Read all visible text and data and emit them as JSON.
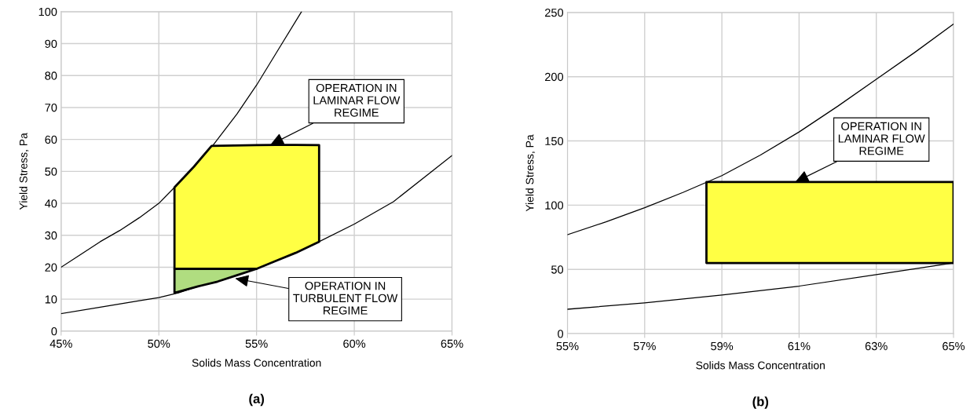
{
  "chart_data": [
    {
      "type": "line",
      "title": "(a)",
      "xlabel": "Solids Mass Concentration",
      "ylabel": "Yield Stress, Pa",
      "xlim": [
        45,
        65
      ],
      "xticks": [
        {
          "value": 45,
          "label": "45%"
        },
        {
          "value": 50,
          "label": "50%"
        },
        {
          "value": 55,
          "label": "55%"
        },
        {
          "value": 60,
          "label": "60%"
        },
        {
          "value": 65,
          "label": "65%"
        }
      ],
      "ylim": [
        0,
        100
      ],
      "yticks": [
        0,
        10,
        20,
        30,
        40,
        50,
        60,
        70,
        80,
        90,
        100
      ],
      "grid": true,
      "series": [
        {
          "color": "#000000",
          "x": [
            45,
            46,
            47,
            48,
            49,
            50,
            50.8,
            52,
            53,
            54,
            55,
            56,
            57.3
          ],
          "values": [
            20,
            24,
            28,
            31.5,
            35.5,
            40,
            45,
            52,
            60,
            68,
            77,
            87,
            100
          ]
        },
        {
          "color": "#000000",
          "x": [
            45,
            47,
            49,
            50,
            51,
            52,
            53,
            54,
            55,
            56,
            57,
            58.2,
            60,
            62,
            65
          ],
          "values": [
            5.5,
            7.5,
            9.5,
            10.5,
            12,
            14,
            15.5,
            17.5,
            19.5,
            22,
            24.5,
            28,
            33.5,
            40.5,
            55
          ]
        },
        {
          "type": "area",
          "color": "#ffff44",
          "x": [
            50.8,
            51.8,
            52.7,
            55,
            56,
            57,
            58.2,
            58.2,
            57,
            56,
            55,
            50.8
          ],
          "values": [
            45,
            51.5,
            58,
            58.2,
            58.3,
            58.3,
            58.2,
            28,
            24.5,
            22,
            19.5,
            19.5
          ]
        },
        {
          "type": "area",
          "color": "#b0dd80",
          "x": [
            50.8,
            55,
            54,
            53,
            52,
            50.8
          ],
          "values": [
            19.5,
            19.5,
            17.5,
            15.5,
            14,
            12
          ]
        }
      ],
      "annotations": [
        {
          "text": "OPERATION IN\nLAMINAR FLOW\nREGIME",
          "x": 55.7,
          "y": 58.3
        },
        {
          "text": "OPERATION IN\nTURBULENT FLOW\nREGIME",
          "x": 53.9,
          "y": 16.5
        }
      ]
    },
    {
      "type": "line",
      "title": "(b)",
      "xlabel": "Solids Mass Concentration",
      "ylabel": "Yield Stress, Pa",
      "xlim": [
        55,
        65
      ],
      "xticks": [
        {
          "value": 55,
          "label": "55%"
        },
        {
          "value": 57,
          "label": "57%"
        },
        {
          "value": 59,
          "label": "59%"
        },
        {
          "value": 61,
          "label": "61%"
        },
        {
          "value": 63,
          "label": "63%"
        },
        {
          "value": 65,
          "label": "65%"
        }
      ],
      "ylim": [
        0,
        250
      ],
      "yticks": [
        0,
        50,
        100,
        150,
        200,
        250
      ],
      "grid": true,
      "series": [
        {
          "color": "#000000",
          "x": [
            55,
            56,
            57,
            58,
            59,
            60,
            61,
            62,
            63,
            64,
            65
          ],
          "values": [
            77,
            87,
            98,
            110,
            123,
            139,
            157,
            177,
            198,
            219,
            241
          ]
        },
        {
          "color": "#000000",
          "x": [
            55,
            57,
            59,
            61,
            63,
            65
          ],
          "values": [
            19,
            24,
            30,
            37,
            46,
            55
          ]
        },
        {
          "type": "area",
          "color": "#ffff44",
          "x": [
            58.6,
            65,
            65,
            58.6
          ],
          "values": [
            118,
            118,
            55,
            55
          ]
        }
      ],
      "annotations": [
        {
          "text": "OPERATION IN\nLAMINAR FLOW\nREGIME",
          "x": 60.9,
          "y": 118
        }
      ]
    }
  ]
}
